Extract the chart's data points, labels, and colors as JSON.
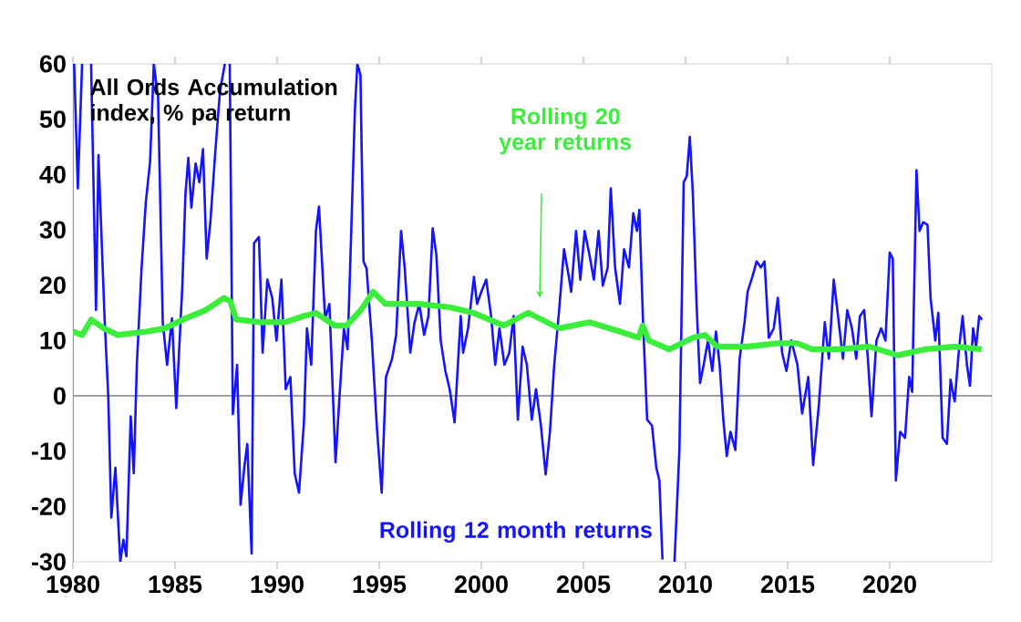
{
  "chart_data": {
    "type": "line",
    "title": "All Ords Accumulation index, % pa return",
    "xlim": [
      1980,
      2025
    ],
    "xticks": [
      1980,
      1985,
      1990,
      1995,
      2000,
      2005,
      2010,
      2015,
      2020
    ],
    "ylim": [
      -30,
      60
    ],
    "yticks": [
      -30,
      -20,
      -10,
      0,
      10,
      20,
      30,
      40,
      50,
      60
    ],
    "ref_lines": [
      {
        "axis": "y",
        "value": 0,
        "color": "#808080"
      }
    ],
    "line_style": "solid",
    "series": [
      {
        "name": "Rolling 12 month returns",
        "color": "#1414ff",
        "x": [
          1980.06,
          1980.24,
          1980.45,
          1980.6,
          1980.89,
          1981.13,
          1981.25,
          1981.55,
          1981.73,
          1981.88,
          1982.08,
          1982.32,
          1982.47,
          1982.62,
          1982.83,
          1982.98,
          1983.13,
          1983.36,
          1983.57,
          1983.78,
          1983.96,
          1984.17,
          1984.4,
          1984.61,
          1984.85,
          1985.06,
          1985.36,
          1985.51,
          1985.65,
          1985.8,
          1986.01,
          1986.19,
          1986.37,
          1986.55,
          1986.73,
          1986.99,
          1987.2,
          1987.44,
          1987.55,
          1987.68,
          1987.83,
          1988.04,
          1988.21,
          1988.39,
          1988.54,
          1988.75,
          1988.87,
          1989.11,
          1989.29,
          1989.52,
          1989.76,
          1989.97,
          1990.21,
          1990.42,
          1990.65,
          1990.86,
          1991.07,
          1991.31,
          1991.46,
          1991.67,
          1991.9,
          1992.05,
          1992.35,
          1992.56,
          1992.86,
          1993.04,
          1993.27,
          1993.45,
          1993.63,
          1993.81,
          1993.93,
          1994.08,
          1994.23,
          1994.38,
          1994.64,
          1994.88,
          1995.12,
          1995.33,
          1995.63,
          1995.83,
          1996.07,
          1996.25,
          1996.52,
          1996.73,
          1996.96,
          1997.2,
          1997.41,
          1997.62,
          1997.8,
          1998.01,
          1998.24,
          1998.45,
          1998.69,
          1998.99,
          1999.11,
          1999.35,
          1999.64,
          1999.79,
          2000.0,
          2000.24,
          2000.48,
          2000.68,
          2000.89,
          2001.13,
          2001.37,
          2001.58,
          2001.79,
          2002.02,
          2002.23,
          2002.47,
          2002.68,
          2002.92,
          2003.15,
          2003.36,
          2003.57,
          2003.81,
          2004.05,
          2004.26,
          2004.4,
          2004.64,
          2004.85,
          2005.06,
          2005.3,
          2005.51,
          2005.74,
          2005.95,
          2006.19,
          2006.34,
          2006.55,
          2006.79,
          2006.99,
          2007.23,
          2007.44,
          2007.62,
          2007.74,
          2007.92,
          2008.12,
          2008.36,
          2008.57,
          2008.72,
          2008.87,
          2009.1,
          2009.46,
          2009.7,
          2009.91,
          2010.06,
          2010.21,
          2010.36,
          2010.54,
          2010.71,
          2010.89,
          2011.1,
          2011.31,
          2011.49,
          2011.67,
          2011.85,
          2012.02,
          2012.2,
          2012.44,
          2012.65,
          2012.89,
          2013.04,
          2013.27,
          2013.48,
          2013.69,
          2013.87,
          2014.08,
          2014.32,
          2014.52,
          2014.73,
          2014.94,
          2015.18,
          2015.48,
          2015.71,
          2016.01,
          2016.25,
          2016.52,
          2016.82,
          2017.02,
          2017.26,
          2017.47,
          2017.71,
          2017.92,
          2018.15,
          2018.36,
          2018.54,
          2018.75,
          2018.93,
          2019.11,
          2019.35,
          2019.58,
          2019.79,
          2020.0,
          2020.15,
          2020.3,
          2020.51,
          2020.75,
          2020.95,
          2021.1,
          2021.31,
          2021.46,
          2021.64,
          2021.85,
          2022.0,
          2022.23,
          2022.38,
          2022.59,
          2022.8,
          2022.98,
          2023.18,
          2023.39,
          2023.57,
          2023.78,
          2023.93,
          2024.08,
          2024.23,
          2024.38,
          2024.52
        ],
        "values": [
          60,
          37.5,
          60,
          null,
          60,
          15.5,
          43.5,
          14,
          0,
          -22,
          -13,
          -30,
          -26,
          -29,
          -3.7,
          -14,
          5.6,
          23,
          35,
          42.4,
          60,
          54,
          13.3,
          5.6,
          14,
          -2.2,
          20,
          36.4,
          43,
          34,
          42,
          38.6,
          44.6,
          24.8,
          31.4,
          45,
          55,
          60,
          null,
          60,
          -3.3,
          5.6,
          -19.7,
          -13,
          -8.7,
          -28.5,
          27.6,
          28.7,
          7.8,
          21,
          17.7,
          10,
          21,
          1.2,
          3.4,
          -14,
          -17.5,
          -5,
          12.2,
          5.6,
          29.8,
          34.2,
          14,
          16.6,
          -12,
          -1,
          12.2,
          8.4,
          29.8,
          51.8,
          60,
          58,
          24.3,
          23,
          10,
          -5.4,
          -17.5,
          3.4,
          6.7,
          11,
          29.8,
          23,
          7.8,
          13.3,
          16.6,
          11,
          14.4,
          30.3,
          25.4,
          10,
          4.5,
          1.2,
          -4.8,
          14.4,
          7.8,
          12.2,
          21.5,
          16.6,
          18.8,
          21,
          14.4,
          5.6,
          12.2,
          5.6,
          7.8,
          14.4,
          -4.3,
          8.9,
          5.6,
          -4.3,
          1.2,
          -5.4,
          -14.2,
          -6.5,
          5.6,
          15.5,
          26.5,
          22.1,
          18.8,
          29.8,
          21,
          29.8,
          25.4,
          21,
          29.8,
          19.9,
          23.2,
          37.5,
          23.2,
          16.6,
          26.5,
          23.2,
          33,
          29.8,
          33.6,
          13.3,
          -4.3,
          -5.4,
          -13,
          -15.3,
          -29.6,
          null,
          -30,
          -9.8,
          38.6,
          39.7,
          46.8,
          36.4,
          16.6,
          2.3,
          5.6,
          10,
          4.5,
          11.6,
          5.6,
          -4.3,
          -10.9,
          -6.5,
          -9.8,
          6.7,
          13.3,
          18.8,
          21.5,
          24.3,
          23.2,
          24.3,
          10.5,
          12.2,
          17.7,
          7.8,
          4.5,
          10,
          5.6,
          -3.2,
          3.4,
          -12.5,
          -2.1,
          13.3,
          6.7,
          21,
          14.4,
          6.7,
          15.5,
          12.2,
          6.7,
          14.4,
          15.5,
          6.7,
          -3.7,
          10,
          12.2,
          10,
          25.9,
          24.8,
          -15.3,
          -6.5,
          -7.6,
          3.4,
          0.7,
          40.8,
          29.8,
          31.4,
          30.9,
          17.7,
          10,
          15,
          -7.6,
          -8.7,
          2.9,
          -1,
          8.4,
          14.4,
          5.6,
          1.8,
          12.2,
          8.9,
          14.4,
          13.8
        ]
      },
      {
        "name": "Rolling 20 year returns",
        "color": "#3cee3c",
        "x": [
          1980.0,
          1980.45,
          1980.9,
          1981.5,
          1982.2,
          1983.6,
          1984.5,
          1985.4,
          1986.5,
          1987.4,
          1987.7,
          1988.0,
          1989.2,
          1990.4,
          1991.3,
          1991.9,
          1992.8,
          1993.4,
          1994.1,
          1994.7,
          1995.3,
          1996.96,
          1998.45,
          1999.6,
          2001.1,
          2002.3,
          2003.8,
          2005.3,
          2006.8,
          2007.7,
          2007.9,
          2008.2,
          2009.2,
          2010.36,
          2010.95,
          2011.55,
          2013.04,
          2014.52,
          2015.48,
          2016.2,
          2017.5,
          2019.0,
          2020.4,
          2021.7,
          2023.2,
          2024.5
        ],
        "values": [
          11.6,
          11,
          13.8,
          12.2,
          11,
          11.6,
          12.2,
          13.8,
          15.5,
          17.7,
          17.1,
          13.8,
          13.3,
          13.3,
          14.4,
          15,
          12.7,
          12.7,
          15.5,
          18.8,
          16.6,
          16.6,
          16,
          15,
          12.7,
          15,
          12.2,
          13.3,
          11.6,
          10.5,
          12.7,
          10,
          8.4,
          10.5,
          11,
          8.9,
          8.9,
          9.5,
          9.5,
          8.4,
          8.4,
          8.9,
          7.3,
          8.4,
          8.9,
          8.4
        ]
      }
    ]
  }
}
